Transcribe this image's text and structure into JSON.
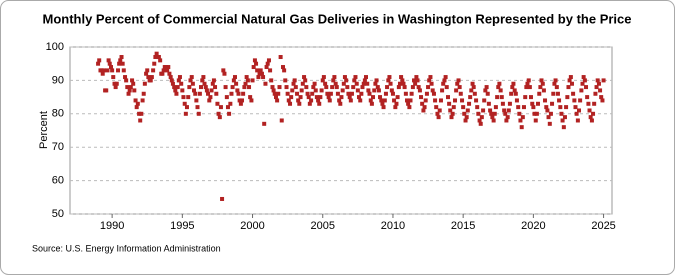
{
  "chart_data": {
    "type": "scatter",
    "title": "Monthly Percent of Commercial Natural Gas Deliveries in Washington Represented by the Price",
    "y_label": "Percent",
    "source": "Source: U.S. Energy Information Administration",
    "color": "#b22222",
    "xlim": [
      1987,
      2025.6
    ],
    "xticks": [
      1990,
      1995,
      2000,
      2005,
      2010,
      2015,
      2020,
      2025
    ],
    "ylim": [
      50,
      100
    ],
    "yticks": [
      50,
      60,
      70,
      80,
      90,
      100
    ],
    "grid": true,
    "x": [
      1989,
      1989.08,
      1989.17,
      1989.25,
      1989.33,
      1989.42,
      1989.5,
      1989.58,
      1989.67,
      1989.75,
      1989.83,
      1989.92,
      1990,
      1990.08,
      1990.17,
      1990.25,
      1990.33,
      1990.42,
      1990.5,
      1990.58,
      1990.67,
      1990.75,
      1990.83,
      1990.92,
      1991,
      1991.08,
      1991.17,
      1991.25,
      1991.33,
      1991.42,
      1991.5,
      1991.58,
      1991.67,
      1991.75,
      1991.83,
      1991.92,
      1992,
      1992.08,
      1992.17,
      1992.25,
      1992.33,
      1992.42,
      1992.5,
      1992.58,
      1992.67,
      1992.75,
      1992.83,
      1992.92,
      1993,
      1993.08,
      1993.17,
      1993.25,
      1993.33,
      1993.42,
      1993.5,
      1993.58,
      1993.67,
      1993.75,
      1993.83,
      1993.92,
      1994,
      1994.08,
      1994.17,
      1994.25,
      1994.33,
      1994.42,
      1994.5,
      1994.58,
      1994.67,
      1994.75,
      1994.83,
      1994.92,
      1995,
      1995.08,
      1995.17,
      1995.25,
      1995.33,
      1995.42,
      1995.5,
      1995.58,
      1995.67,
      1995.75,
      1995.83,
      1995.92,
      1996,
      1996.08,
      1996.17,
      1996.25,
      1996.33,
      1996.42,
      1996.5,
      1996.58,
      1996.67,
      1996.75,
      1996.83,
      1996.92,
      1997,
      1997.08,
      1997.17,
      1997.25,
      1997.33,
      1997.42,
      1997.5,
      1997.58,
      1997.67,
      1997.75,
      1997.83,
      1997.92,
      1998,
      1998.08,
      1998.17,
      1998.25,
      1998.33,
      1998.42,
      1998.5,
      1998.58,
      1998.67,
      1998.75,
      1998.83,
      1998.92,
      1999,
      1999.08,
      1999.17,
      1999.25,
      1999.33,
      1999.42,
      1999.5,
      1999.58,
      1999.67,
      1999.75,
      1999.83,
      1999.92,
      2000,
      2000.08,
      2000.17,
      2000.25,
      2000.33,
      2000.42,
      2000.5,
      2000.58,
      2000.67,
      2000.75,
      2000.83,
      2000.92,
      2001,
      2001.08,
      2001.17,
      2001.25,
      2001.33,
      2001.42,
      2001.5,
      2001.58,
      2001.67,
      2001.75,
      2001.83,
      2001.92,
      2002,
      2002.08,
      2002.17,
      2002.25,
      2002.33,
      2002.42,
      2002.5,
      2002.58,
      2002.67,
      2002.75,
      2002.83,
      2002.92,
      2003,
      2003.08,
      2003.17,
      2003.25,
      2003.33,
      2003.42,
      2003.5,
      2003.58,
      2003.67,
      2003.75,
      2003.83,
      2003.92,
      2004,
      2004.08,
      2004.17,
      2004.25,
      2004.33,
      2004.42,
      2004.5,
      2004.58,
      2004.67,
      2004.75,
      2004.83,
      2004.92,
      2005,
      2005.08,
      2005.17,
      2005.25,
      2005.33,
      2005.42,
      2005.5,
      2005.58,
      2005.67,
      2005.75,
      2005.83,
      2005.92,
      2006,
      2006.08,
      2006.17,
      2006.25,
      2006.33,
      2006.42,
      2006.5,
      2006.58,
      2006.67,
      2006.75,
      2006.83,
      2006.92,
      2007,
      2007.08,
      2007.17,
      2007.25,
      2007.33,
      2007.42,
      2007.5,
      2007.58,
      2007.67,
      2007.75,
      2007.83,
      2007.92,
      2008,
      2008.08,
      2008.17,
      2008.25,
      2008.33,
      2008.42,
      2008.5,
      2008.58,
      2008.67,
      2008.75,
      2008.83,
      2008.92,
      2009,
      2009.08,
      2009.17,
      2009.25,
      2009.33,
      2009.42,
      2009.5,
      2009.58,
      2009.67,
      2009.75,
      2009.83,
      2009.92,
      2010,
      2010.08,
      2010.17,
      2010.25,
      2010.33,
      2010.42,
      2010.5,
      2010.58,
      2010.67,
      2010.75,
      2010.83,
      2010.92,
      2011,
      2011.08,
      2011.17,
      2011.25,
      2011.33,
      2011.42,
      2011.5,
      2011.58,
      2011.67,
      2011.75,
      2011.83,
      2011.92,
      2012,
      2012.08,
      2012.17,
      2012.25,
      2012.33,
      2012.42,
      2012.5,
      2012.58,
      2012.67,
      2012.75,
      2012.83,
      2012.92,
      2013,
      2013.08,
      2013.17,
      2013.25,
      2013.33,
      2013.42,
      2013.5,
      2013.58,
      2013.67,
      2013.75,
      2013.83,
      2013.92,
      2014,
      2014.08,
      2014.17,
      2014.25,
      2014.33,
      2014.42,
      2014.5,
      2014.58,
      2014.67,
      2014.75,
      2014.83,
      2014.92,
      2015,
      2015.08,
      2015.17,
      2015.25,
      2015.33,
      2015.42,
      2015.5,
      2015.58,
      2015.67,
      2015.75,
      2015.83,
      2015.92,
      2016,
      2016.08,
      2016.17,
      2016.25,
      2016.33,
      2016.42,
      2016.5,
      2016.58,
      2016.67,
      2016.75,
      2016.83,
      2016.92,
      2017,
      2017.08,
      2017.17,
      2017.25,
      2017.33,
      2017.42,
      2017.5,
      2017.58,
      2017.67,
      2017.75,
      2017.83,
      2017.92,
      2018,
      2018.08,
      2018.17,
      2018.25,
      2018.33,
      2018.42,
      2018.5,
      2018.58,
      2018.67,
      2018.75,
      2018.83,
      2018.92,
      2019,
      2019.08,
      2019.17,
      2019.25,
      2019.33,
      2019.42,
      2019.5,
      2019.58,
      2019.67,
      2019.75,
      2019.83,
      2019.92,
      2020,
      2020.08,
      2020.17,
      2020.25,
      2020.33,
      2020.42,
      2020.5,
      2020.58,
      2020.67,
      2020.75,
      2020.83,
      2020.92,
      2021,
      2021.08,
      2021.17,
      2021.25,
      2021.33,
      2021.42,
      2021.5,
      2021.58,
      2021.67,
      2021.75,
      2021.83,
      2021.92,
      2022,
      2022.08,
      2022.17,
      2022.25,
      2022.33,
      2022.42,
      2022.5,
      2022.58,
      2022.67,
      2022.75,
      2022.83,
      2022.92,
      2023,
      2023.08,
      2023.17,
      2023.25,
      2023.33,
      2023.42,
      2023.5,
      2023.58,
      2023.67,
      2023.75,
      2023.83,
      2023.92,
      2024,
      2024.08,
      2024.17,
      2024.25,
      2024.33,
      2024.42,
      2024.5,
      2024.58,
      2024.67,
      2024.75,
      2024.83,
      2024.92,
      2025
    ],
    "values": [
      95,
      96,
      93,
      93,
      92,
      93,
      87,
      87,
      93,
      96,
      95,
      94,
      93,
      91,
      89,
      88,
      89,
      93,
      95,
      96,
      97,
      95,
      93,
      91,
      90,
      88,
      86,
      87,
      88,
      90,
      89,
      87,
      84,
      82,
      83,
      80,
      78,
      80,
      84,
      86,
      89,
      92,
      93,
      91,
      90,
      90,
      91,
      93,
      95,
      97,
      98,
      97,
      97,
      96,
      92,
      92,
      93,
      94,
      94,
      93,
      94,
      92,
      91,
      90,
      89,
      88,
      87,
      86,
      88,
      90,
      91,
      89,
      87,
      85,
      83,
      80,
      82,
      85,
      88,
      90,
      91,
      89,
      87,
      86,
      84,
      82,
      80,
      86,
      88,
      90,
      91,
      89,
      88,
      87,
      86,
      84,
      85,
      87,
      89,
      90,
      88,
      86,
      83,
      80,
      79,
      82,
      54.5,
      93,
      92,
      88,
      85,
      82,
      80,
      83,
      86,
      88,
      90,
      91,
      89,
      87,
      86,
      84,
      83,
      84,
      86,
      88,
      89,
      91,
      90,
      88,
      85,
      84,
      90,
      94,
      96,
      95,
      93,
      91,
      92,
      93,
      92,
      91,
      77,
      89,
      94,
      95,
      96,
      93,
      90,
      88,
      87,
      86,
      85,
      84,
      86,
      88,
      97,
      78,
      94,
      93,
      90,
      88,
      86,
      84,
      83,
      85,
      87,
      89,
      90,
      88,
      86,
      84,
      83,
      85,
      87,
      89,
      91,
      90,
      88,
      86,
      85,
      83,
      84,
      86,
      88,
      89,
      87,
      85,
      84,
      83,
      85,
      87,
      90,
      91,
      89,
      88,
      86,
      85,
      84,
      86,
      88,
      90,
      91,
      89,
      88,
      86,
      84,
      83,
      85,
      87,
      89,
      91,
      90,
      88,
      86,
      85,
      84,
      86,
      88,
      90,
      91,
      89,
      87,
      85,
      84,
      86,
      88,
      89,
      90,
      91,
      89,
      87,
      86,
      84,
      83,
      85,
      87,
      89,
      90,
      88,
      87,
      85,
      84,
      83,
      82,
      84,
      86,
      88,
      90,
      91,
      89,
      87,
      86,
      84,
      82,
      83,
      85,
      88,
      89,
      91,
      90,
      89,
      88,
      86,
      84,
      83,
      82,
      84,
      86,
      88,
      90,
      89,
      91,
      90,
      88,
      87,
      85,
      83,
      81,
      82,
      84,
      86,
      88,
      90,
      91,
      89,
      87,
      86,
      84,
      82,
      80,
      79,
      81,
      84,
      87,
      89,
      90,
      91,
      88,
      85,
      83,
      81,
      79,
      80,
      82,
      84,
      87,
      89,
      90,
      88,
      86,
      84,
      82,
      80,
      78,
      79,
      81,
      83,
      85,
      87,
      89,
      88,
      86,
      84,
      82,
      80,
      78,
      77,
      79,
      81,
      84,
      87,
      88,
      86,
      83,
      81,
      80,
      79,
      78,
      80,
      82,
      85,
      88,
      89,
      87,
      85,
      83,
      81,
      80,
      78,
      79,
      81,
      83,
      86,
      88,
      89,
      87,
      86,
      84,
      82,
      80,
      78,
      76,
      79,
      82,
      85,
      88,
      89,
      90,
      88,
      85,
      83,
      82,
      80,
      78,
      80,
      83,
      86,
      88,
      90,
      89,
      87,
      84,
      82,
      81,
      79,
      77,
      80,
      83,
      86,
      89,
      90,
      88,
      86,
      84,
      82,
      80,
      78,
      76,
      79,
      82,
      85,
      88,
      90,
      91,
      89,
      86,
      84,
      82,
      80,
      78,
      81,
      84,
      87,
      89,
      91,
      90,
      88,
      85,
      83,
      81,
      79,
      78,
      80,
      83,
      86,
      88,
      90,
      89,
      87,
      85,
      84,
      90
    ]
  }
}
